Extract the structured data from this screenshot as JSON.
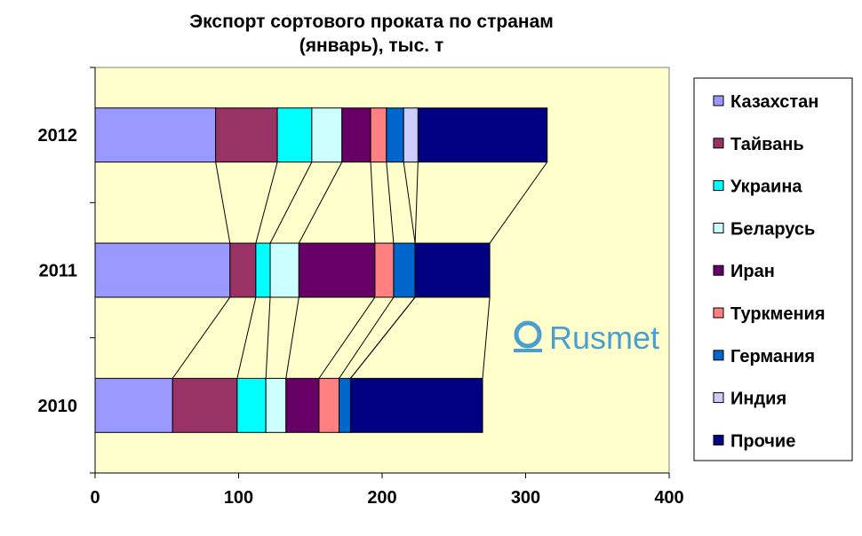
{
  "chart_data": {
    "type": "bar",
    "orientation": "horizontal",
    "stacked": true,
    "title": [
      "Экспорт сортового проката по странам",
      "(январь), тыс. т"
    ],
    "categories": [
      "2012",
      "2011",
      "2010"
    ],
    "xlim": [
      0,
      400
    ],
    "x_ticks": [
      "0",
      "100",
      "200",
      "300",
      "400"
    ],
    "grid": false,
    "legend_position": "right",
    "series": [
      {
        "name": "Казахстан",
        "color": "#9999ff",
        "values": [
          84,
          94,
          54
        ]
      },
      {
        "name": "Тайвань",
        "color": "#993366",
        "values": [
          43,
          18,
          45
        ]
      },
      {
        "name": "Украина",
        "color": "#00ffff",
        "values": [
          24,
          10,
          20
        ]
      },
      {
        "name": "Беларусь",
        "color": "#ccffff",
        "values": [
          21,
          20,
          14
        ]
      },
      {
        "name": "Иран",
        "color": "#660066",
        "values": [
          20,
          53,
          23
        ]
      },
      {
        "name": "Туркмения",
        "color": "#ff8080",
        "values": [
          11,
          13,
          14
        ]
      },
      {
        "name": "Германия",
        "color": "#0066cc",
        "values": [
          12,
          15,
          8
        ]
      },
      {
        "name": "Индия",
        "color": "#ccccff",
        "values": [
          10,
          0,
          0
        ]
      },
      {
        "name": "Прочие",
        "color": "#000080",
        "values": [
          90,
          52,
          92
        ]
      }
    ],
    "plot_background": "#ffffcc",
    "watermark": "Rusmet",
    "watermark_color": "#4a9fd0"
  }
}
